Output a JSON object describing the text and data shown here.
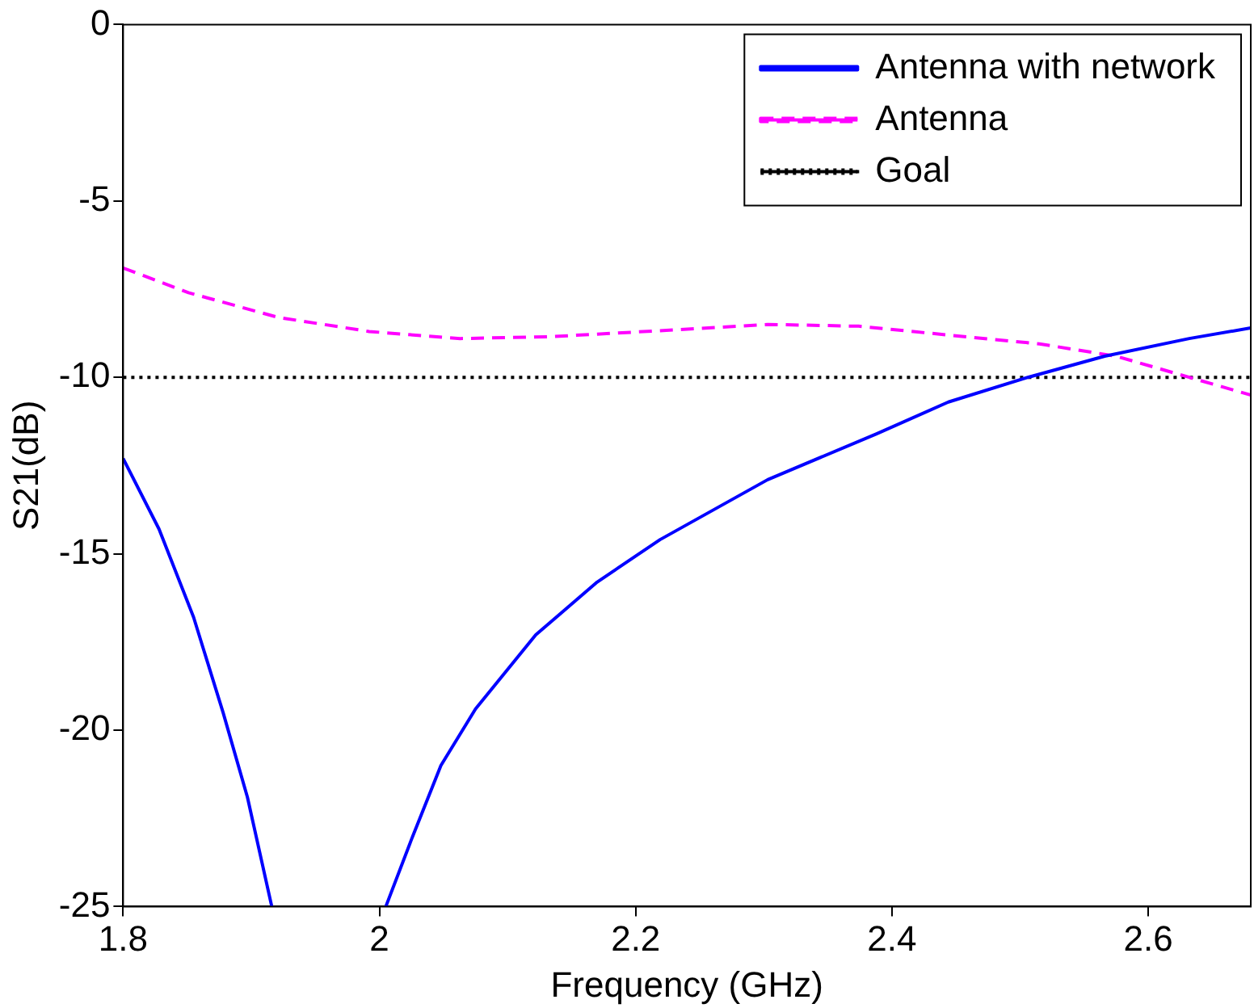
{
  "chart_data": {
    "type": "line",
    "xlabel": "Frequency (GHz)",
    "ylabel": "S21(dB)",
    "xlim": [
      1.8,
      2.68
    ],
    "ylim": [
      -25,
      0
    ],
    "xticks": [
      1.8,
      {
        "value": 2,
        "label": "2"
      },
      2.2,
      2.4,
      2.6
    ],
    "yticks": [
      -25,
      -20,
      -15,
      -10,
      -5,
      0
    ],
    "grid": false,
    "legend": "top right",
    "marker": "none",
    "series": [
      {
        "name": "Antenna with network",
        "color": "#0000ff",
        "line_style": "solid",
        "x": [
          1.8,
          1.828,
          1.855,
          1.878,
          1.897,
          1.916,
          null,
          2.005,
          2.025,
          2.048,
          2.075,
          2.122,
          2.17,
          2.219,
          2.303,
          2.388,
          2.444,
          2.506,
          2.566,
          2.632,
          2.68
        ],
        "values": [
          -12.3,
          -14.3,
          -16.8,
          -19.5,
          -21.9,
          -25,
          null,
          -25,
          -23.1,
          -21.0,
          -19.4,
          -17.3,
          -15.8,
          -14.6,
          -12.9,
          -11.6,
          -10.7,
          -10.0,
          -9.4,
          -8.9,
          -8.6
        ]
      },
      {
        "name": "Antenna",
        "color": "#ff00ff",
        "line_style": "dashed",
        "x": [
          1.8,
          1.851,
          1.921,
          1.992,
          2.063,
          2.132,
          2.233,
          2.303,
          2.374,
          2.444,
          2.515,
          2.575,
          2.632,
          2.68
        ],
        "values": [
          -6.9,
          -7.6,
          -8.3,
          -8.7,
          -8.9,
          -8.85,
          -8.65,
          -8.5,
          -8.55,
          -8.8,
          -9.05,
          -9.4,
          -10.0,
          -10.5
        ]
      },
      {
        "name": "Goal",
        "color": "#000000",
        "line_style": "dotted",
        "x": [
          1.8,
          2.68
        ],
        "values": [
          -10,
          -10
        ]
      }
    ]
  }
}
